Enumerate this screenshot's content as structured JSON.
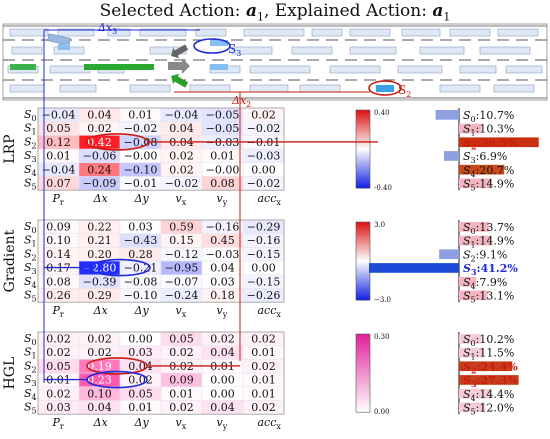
{
  "title": {
    "prefix": "Selected Action: ",
    "middle": ", Explained Action: ",
    "action_sym": "a",
    "action_sub": "1"
  },
  "scene": {
    "annot_dx3": "Δx",
    "annot_dx3_sub": "3",
    "annot_dx2": "Δx",
    "annot_dx2_sub": "2",
    "vehicle_labels": [
      {
        "text": "S",
        "sub": "3"
      },
      {
        "text": "S",
        "sub": "2"
      }
    ]
  },
  "colors": {
    "red": "#cc1a10",
    "blue": "#1f2ad8",
    "magenta": "#e040a0",
    "arrow_orange": "#d86a1a",
    "arrow_green": "#2aa02a"
  },
  "columns": [
    "P",
    "Δx",
    "Δy",
    "v",
    "v",
    "acc"
  ],
  "column_subs": [
    "r",
    "",
    "",
    "x",
    "y",
    "x"
  ],
  "rows": [
    "S0",
    "S1",
    "S2",
    "S3",
    "S4",
    "S5"
  ],
  "panels": [
    {
      "name": "LRP",
      "cmap": "diverging",
      "cbar_max": "0.40",
      "cbar_min": "-0.40",
      "vmax": 0.4,
      "values": [
        [
          "−0.04",
          "0.04",
          "0.01",
          "−0.04",
          "−0.05",
          "0.02"
        ],
        [
          "0.05",
          "0.02",
          "−0.02",
          "0.04",
          "−0.05",
          "−0.02"
        ],
        [
          "0.12",
          "0.42",
          "−0.08",
          "0.04",
          "−0.03",
          "−0.01"
        ],
        [
          "0.01",
          "−0.06",
          "−0.00",
          "0.02",
          "0.01",
          "−0.03"
        ],
        [
          "−0.04",
          "0.24",
          "−0.10",
          "0.02",
          "−0.00",
          "0.00"
        ],
        [
          "0.07",
          "−0.09",
          "−0.01",
          "−0.02",
          "0.08",
          "−0.02"
        ]
      ],
      "bars": [
        {
          "label": "S",
          "sub": "0",
          "pct": ":10.7%",
          "value": 10.7,
          "sign": -1,
          "highlight": false
        },
        {
          "label": "S",
          "sub": "1",
          "pct": ":10.3%",
          "value": 10.3,
          "sign": 1,
          "highlight": false
        },
        {
          "label": "S",
          "sub": "2",
          "pct": ":36.5%",
          "value": 36.5,
          "sign": 1,
          "highlight": "red"
        },
        {
          "label": "S",
          "sub": "3",
          "pct": ":6.9%",
          "value": 6.9,
          "sign": -1,
          "highlight": false
        },
        {
          "label": "S",
          "sub": "4",
          "pct": ":20.7%",
          "value": 20.7,
          "sign": 1,
          "highlight": false
        },
        {
          "label": "S",
          "sub": "5",
          "pct": ":14.9%",
          "value": 14.9,
          "sign": 1,
          "highlight": false
        }
      ]
    },
    {
      "name": "Gradient",
      "cmap": "diverging",
      "cbar_max": "3.0",
      "cbar_min": "−3.0",
      "vmax": 3.0,
      "values": [
        [
          "0.09",
          "0.22",
          "0.03",
          "0.59",
          "−0.16",
          "−0.29"
        ],
        [
          "0.10",
          "0.21",
          "−0.43",
          "0.15",
          "0.45",
          "−0.16"
        ],
        [
          "0.14",
          "0.20",
          "0.28",
          "−0.12",
          "−0.03",
          "−0.15"
        ],
        [
          "0.17",
          "−2.80",
          "−0.21",
          "−0.95",
          "0.04",
          "0.00"
        ],
        [
          "0.08",
          "−0.39",
          "−0.08",
          "−0.07",
          "0.03",
          "−0.15"
        ],
        [
          "0.26",
          "0.29",
          "−0.10",
          "−0.24",
          "0.18",
          "−0.26"
        ]
      ],
      "bars": [
        {
          "label": "S",
          "sub": "0",
          "pct": ":13.7%",
          "value": 13.7,
          "sign": 1,
          "highlight": false
        },
        {
          "label": "S",
          "sub": "1",
          "pct": ":14.9%",
          "value": 14.9,
          "sign": 1,
          "highlight": false
        },
        {
          "label": "S",
          "sub": "2",
          "pct": ":9.1%",
          "value": 9.1,
          "sign": -1,
          "highlight": false
        },
        {
          "label": "S",
          "sub": "3",
          "pct": ":41.2%",
          "value": 41.2,
          "sign": -1,
          "highlight": "blue"
        },
        {
          "label": "S",
          "sub": "4",
          "pct": ":7.9%",
          "value": 7.9,
          "sign": 1,
          "highlight": false
        },
        {
          "label": "S",
          "sub": "5",
          "pct": ":13.1%",
          "value": 13.1,
          "sign": 1,
          "highlight": false
        }
      ]
    },
    {
      "name": "HGL",
      "cmap": "sequential",
      "cbar_max": "0.30",
      "cbar_min": "0.00",
      "vmax": 0.3,
      "values": [
        [
          "0.02",
          "0.02",
          "0.00",
          "0.05",
          "0.02",
          "0.02"
        ],
        [
          "0.02",
          "0.02",
          "0.03",
          "0.02",
          "0.04",
          "0.01"
        ],
        [
          "0.05",
          "0.19",
          "0.04",
          "0.02",
          "0.01",
          "0.02"
        ],
        [
          "0.01",
          "0.23",
          "0.02",
          "0.09",
          "0.00",
          "0.01"
        ],
        [
          "0.02",
          "0.10",
          "0.05",
          "0.01",
          "0.00",
          "0.01"
        ],
        [
          "0.03",
          "0.04",
          "0.01",
          "0.02",
          "0.04",
          "0.02"
        ]
      ],
      "bars": [
        {
          "label": "S",
          "sub": "0",
          "pct": ":10.2%",
          "value": 10.2,
          "sign": 1,
          "highlight": false
        },
        {
          "label": "S",
          "sub": "1",
          "pct": ":11.5%",
          "value": 11.5,
          "sign": 1,
          "highlight": false
        },
        {
          "label": "S",
          "sub": "2",
          "pct": ":24.4%",
          "value": 24.4,
          "sign": 1,
          "highlight": "red"
        },
        {
          "label": "S",
          "sub": "3",
          "pct": ":27.3%",
          "value": 27.3,
          "sign": 1,
          "highlight": "red"
        },
        {
          "label": "S",
          "sub": "4",
          "pct": ":14.4%",
          "value": 14.4,
          "sign": 1,
          "highlight": false
        },
        {
          "label": "S",
          "sub": "5",
          "pct": ":12.0%",
          "value": 12.0,
          "sign": 1,
          "highlight": false
        }
      ]
    }
  ]
}
